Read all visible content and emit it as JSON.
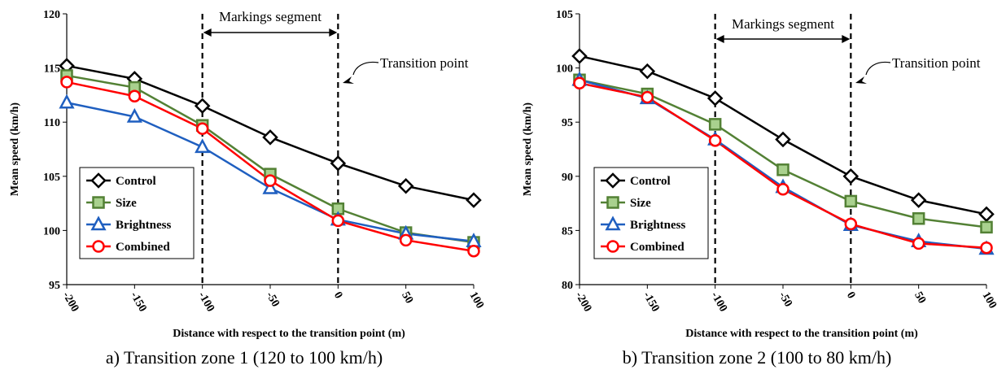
{
  "chart_data": [
    {
      "type": "line",
      "caption": "a) Transition zone 1 (120 to 100 km/h)",
      "xlabel": "Distance with respect to the transition point (m)",
      "ylabel": "Mean speed (km/h)",
      "x": [
        -200,
        -150,
        -100,
        -50,
        0,
        50,
        100
      ],
      "xticks": [
        "-200",
        "-150",
        "-100",
        "-50",
        "0",
        "50",
        "100"
      ],
      "ylim": [
        95,
        120
      ],
      "yticks": [
        95,
        100,
        105,
        110,
        115,
        120
      ],
      "annotations": {
        "segment": "Markings segment",
        "transition": "Transition point",
        "segment_range": [
          -100,
          0
        ]
      },
      "series": [
        {
          "name": "Control",
          "color": "#000000",
          "marker": "diamond",
          "values": [
            115.2,
            114.0,
            111.5,
            108.6,
            106.2,
            104.1,
            102.8
          ]
        },
        {
          "name": "Size",
          "color": "#538135",
          "marker": "square",
          "values": [
            114.3,
            113.2,
            109.7,
            105.2,
            102.0,
            99.8,
            98.9
          ]
        },
        {
          "name": "Brightness",
          "color": "#1f5fc0",
          "marker": "triangle",
          "values": [
            111.8,
            110.5,
            107.7,
            103.9,
            101.0,
            99.7,
            99.0
          ]
        },
        {
          "name": "Combined",
          "color": "#ff0000",
          "marker": "circle",
          "values": [
            113.7,
            112.4,
            109.4,
            104.6,
            100.9,
            99.1,
            98.1
          ]
        }
      ],
      "legend": "lower-left"
    },
    {
      "type": "line",
      "caption": "b) Transition zone 2 (100 to 80 km/h)",
      "xlabel": "Distance with respect to the transition point (m)",
      "ylabel": "Mean speed (km/h)",
      "x": [
        -200,
        -150,
        -100,
        -50,
        0,
        50,
        100
      ],
      "xticks": [
        "-200",
        "-150",
        "-100",
        "-50",
        "0",
        "50",
        "100"
      ],
      "ylim": [
        80,
        105
      ],
      "yticks": [
        80,
        85,
        90,
        95,
        100,
        105
      ],
      "annotations": {
        "segment": "Markings segment",
        "transition": "Transition point",
        "segment_range": [
          -100,
          0
        ]
      },
      "series": [
        {
          "name": "Control",
          "color": "#000000",
          "marker": "diamond",
          "values": [
            101.1,
            99.7,
            97.2,
            93.4,
            90.0,
            87.8,
            86.5
          ]
        },
        {
          "name": "Size",
          "color": "#538135",
          "marker": "square",
          "values": [
            98.9,
            97.6,
            94.8,
            90.6,
            87.7,
            86.1,
            85.3
          ]
        },
        {
          "name": "Brightness",
          "color": "#1f5fc0",
          "marker": "triangle",
          "values": [
            98.9,
            97.2,
            93.4,
            89.0,
            85.5,
            84.0,
            83.3
          ]
        },
        {
          "name": "Combined",
          "color": "#ff0000",
          "marker": "circle",
          "values": [
            98.6,
            97.3,
            93.3,
            88.8,
            85.6,
            83.8,
            83.4
          ]
        }
      ],
      "legend": "lower-left"
    }
  ]
}
